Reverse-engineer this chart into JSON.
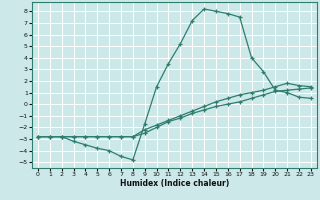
{
  "xlabel": "Humidex (Indice chaleur)",
  "xlim": [
    -0.5,
    23.5
  ],
  "ylim": [
    -5.5,
    8.8
  ],
  "xticks": [
    0,
    1,
    2,
    3,
    4,
    5,
    6,
    7,
    8,
    9,
    10,
    11,
    12,
    13,
    14,
    15,
    16,
    17,
    18,
    19,
    20,
    21,
    22,
    23
  ],
  "yticks": [
    -5,
    -4,
    -3,
    -2,
    -1,
    0,
    1,
    2,
    3,
    4,
    5,
    6,
    7,
    8
  ],
  "bg_color": "#cce8e8",
  "grid_color": "#ffffff",
  "line_color": "#2e7d6e",
  "line1_x": [
    0,
    1,
    2,
    3,
    4,
    5,
    6,
    7,
    8,
    9,
    10,
    11,
    12,
    13,
    14,
    15,
    16,
    17,
    18,
    19,
    20,
    21,
    22,
    23
  ],
  "line1_y": [
    -2.8,
    -2.8,
    -2.8,
    -3.2,
    -3.5,
    -3.8,
    -4.0,
    -4.5,
    -4.8,
    -1.7,
    1.5,
    3.5,
    5.2,
    7.2,
    8.2,
    8.0,
    7.8,
    7.5,
    4.0,
    2.8,
    1.2,
    1.0,
    0.6,
    0.5
  ],
  "line2_x": [
    0,
    1,
    2,
    3,
    4,
    5,
    6,
    7,
    8,
    9,
    10,
    11,
    12,
    13,
    14,
    15,
    16,
    17,
    18,
    19,
    20,
    21,
    22,
    23
  ],
  "line2_y": [
    -2.8,
    -2.8,
    -2.8,
    -2.8,
    -2.8,
    -2.8,
    -2.8,
    -2.8,
    -2.8,
    -2.5,
    -2.0,
    -1.5,
    -1.2,
    -0.8,
    -0.5,
    -0.2,
    0.0,
    0.2,
    0.5,
    0.8,
    1.1,
    1.2,
    1.3,
    1.4
  ],
  "line3_x": [
    0,
    1,
    2,
    3,
    4,
    5,
    6,
    7,
    8,
    9,
    10,
    11,
    12,
    13,
    14,
    15,
    16,
    17,
    18,
    19,
    20,
    21,
    22,
    23
  ],
  "line3_y": [
    -2.8,
    -2.8,
    -2.8,
    -2.8,
    -2.8,
    -2.8,
    -2.8,
    -2.8,
    -2.8,
    -2.2,
    -1.8,
    -1.4,
    -1.0,
    -0.6,
    -0.2,
    0.2,
    0.5,
    0.8,
    1.0,
    1.2,
    1.5,
    1.8,
    1.6,
    1.5
  ]
}
